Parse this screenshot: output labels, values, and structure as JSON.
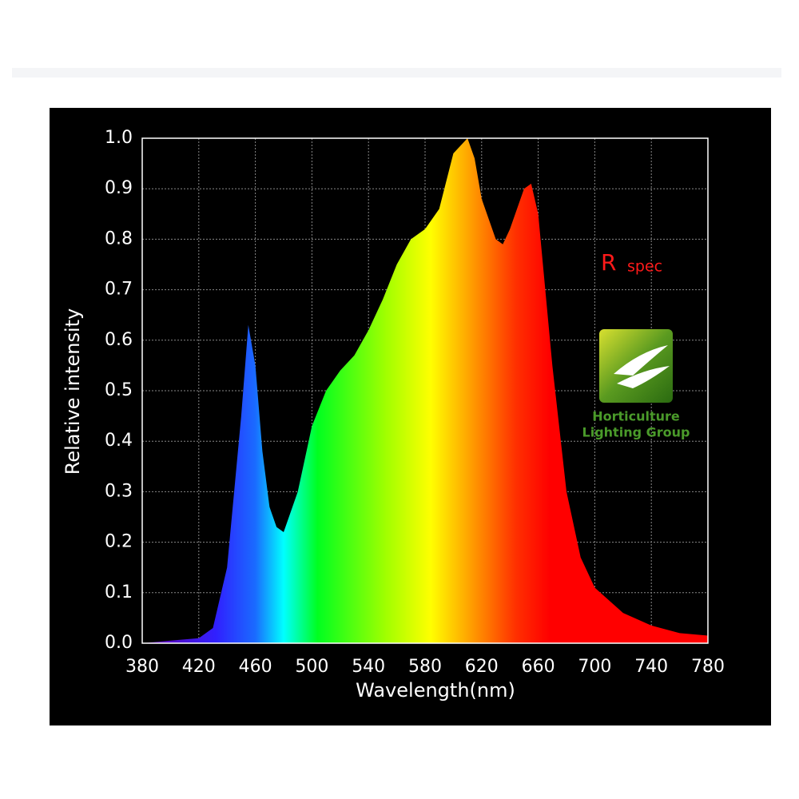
{
  "chart_data": {
    "type": "area",
    "x_label": "Wavelength(nm)",
    "y_label": "Relative intensity",
    "x": [
      380,
      400,
      420,
      430,
      440,
      450,
      455,
      460,
      465,
      470,
      475,
      480,
      490,
      500,
      510,
      520,
      530,
      540,
      550,
      560,
      570,
      580,
      590,
      600,
      610,
      615,
      620,
      630,
      635,
      640,
      650,
      655,
      660,
      670,
      680,
      690,
      700,
      720,
      740,
      760,
      780
    ],
    "values": [
      0.0,
      0.005,
      0.01,
      0.03,
      0.15,
      0.45,
      0.63,
      0.55,
      0.38,
      0.27,
      0.23,
      0.22,
      0.3,
      0.43,
      0.5,
      0.54,
      0.57,
      0.62,
      0.68,
      0.75,
      0.8,
      0.82,
      0.86,
      0.97,
      1.0,
      0.96,
      0.88,
      0.8,
      0.79,
      0.82,
      0.9,
      0.91,
      0.85,
      0.55,
      0.3,
      0.17,
      0.11,
      0.06,
      0.035,
      0.02,
      0.015
    ],
    "xlim": [
      380,
      780
    ],
    "ylim": [
      0,
      1
    ],
    "xticks": [
      380,
      420,
      460,
      500,
      540,
      580,
      620,
      660,
      700,
      740,
      780
    ],
    "yticks": [
      {
        "value": 0,
        "label": "0.0"
      },
      0.1,
      0.2,
      0.3,
      0.4,
      0.5,
      0.6,
      0.7,
      0.8,
      0.9,
      {
        "value": 1,
        "label": "1.0"
      }
    ],
    "grid": true,
    "annotation": {
      "main": "R",
      "sub": "spec"
    },
    "logo_text": [
      "Horticulture",
      "Lighting Group"
    ]
  }
}
